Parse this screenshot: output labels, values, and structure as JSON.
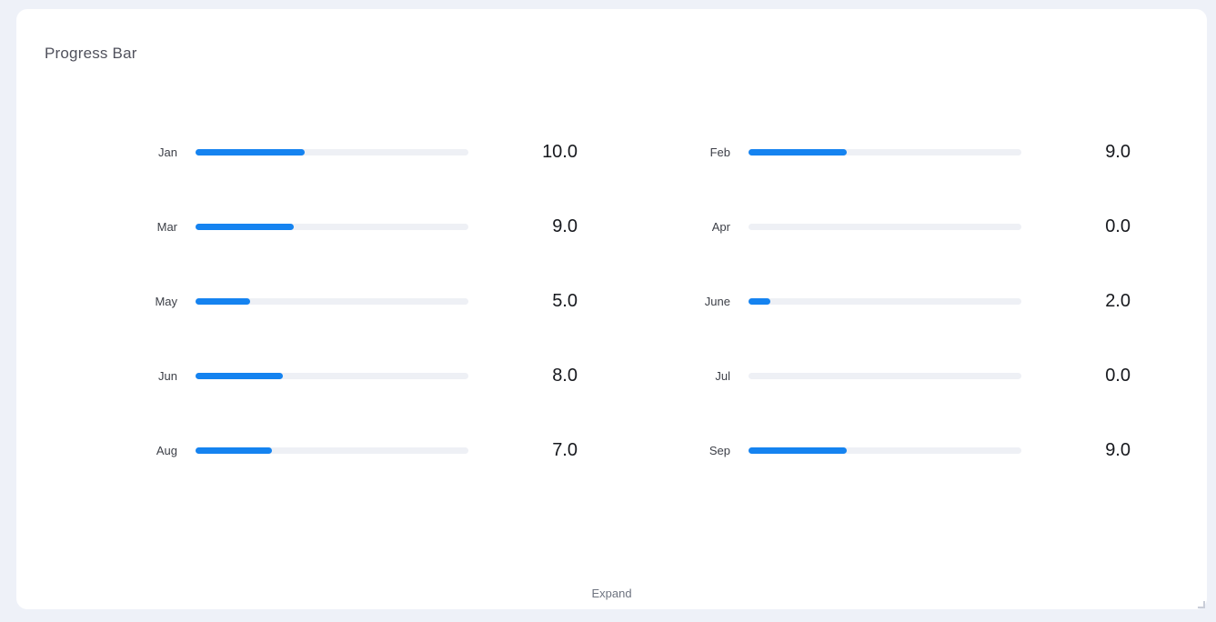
{
  "widget": {
    "title": "Progress Bar",
    "expand_label": "Expand"
  },
  "chart_data": {
    "type": "bar",
    "subtype": "progress-bars",
    "orientation": "horizontal",
    "title": "Progress Bar",
    "categories": [
      "Jan",
      "Feb",
      "Mar",
      "Apr",
      "May",
      "June",
      "Jun",
      "Jul",
      "Aug",
      "Sep"
    ],
    "values": [
      10.0,
      9.0,
      9.0,
      0.0,
      5.0,
      2.0,
      8.0,
      0.0,
      7.0,
      9.0
    ],
    "value_labels": [
      "10.0",
      "9.0",
      "9.0",
      "0.0",
      "5.0",
      "2.0",
      "8.0",
      "0.0",
      "7.0",
      "9.0"
    ],
    "max": 25,
    "layout": "two-column grid, five rows, labels left of bars, values right of bars",
    "legend": false,
    "grid": false
  },
  "colors": {
    "bar_fill": "#1583f0",
    "bar_track": "#eef0f5",
    "page_background": "#eef1f8",
    "card_background": "#ffffff",
    "title_text": "#50515c",
    "label_text": "#3c3f47",
    "value_text": "#16181d",
    "expand_text": "#6e7480",
    "resize_handle": "#c9cdd8"
  }
}
